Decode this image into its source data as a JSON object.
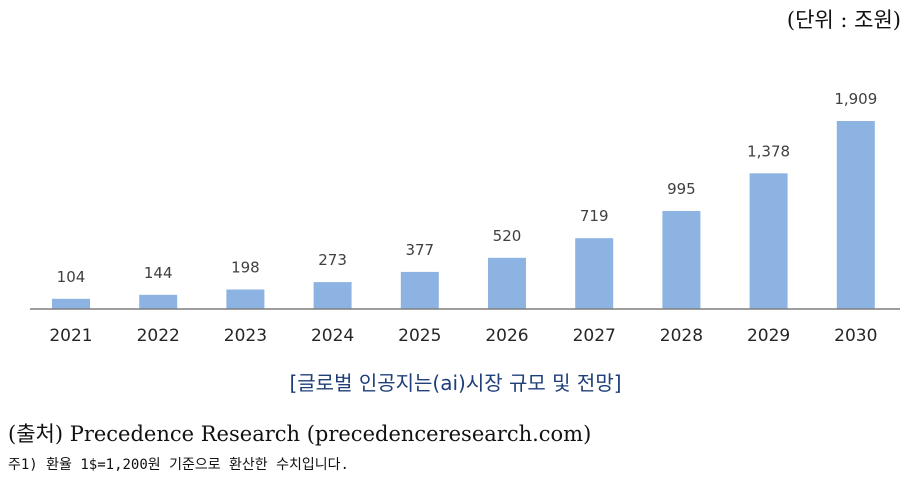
{
  "unit_note": "(단위 : 조원)",
  "caption": "[글로벌 인공지는(ai)시장 규모 및 전망]",
  "source": "(출처) Precedence Research (precedenceresearch.com)",
  "footnote": "주1) 환율 1$=1,200원 기준으로 환산한 수치입니다.",
  "colors": {
    "bar": "#8db3e2",
    "caption": "#1f3f7a"
  },
  "chart_data": {
    "type": "bar",
    "categories": [
      "2021",
      "2022",
      "2023",
      "2024",
      "2025",
      "2026",
      "2027",
      "2028",
      "2029",
      "2030"
    ],
    "values": [
      104,
      144,
      198,
      273,
      377,
      520,
      719,
      995,
      1378,
      1909
    ],
    "value_labels": [
      "104",
      "144",
      "198",
      "273",
      "377",
      "520",
      "719",
      "995",
      "1,378",
      "1,909"
    ],
    "ylim": [
      0,
      1909
    ],
    "grid": false,
    "legend": "none"
  }
}
